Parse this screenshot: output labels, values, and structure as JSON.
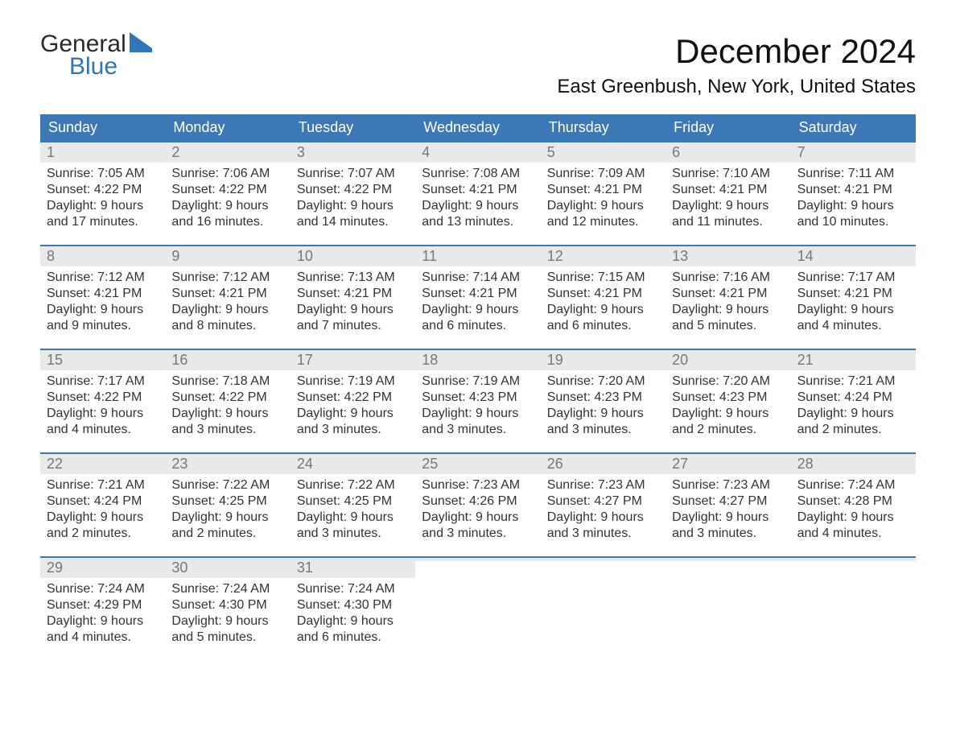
{
  "logo": {
    "line1": "General",
    "line2": "Blue"
  },
  "title": "December 2024",
  "location": "East Greenbush, New York, United States",
  "weekday_labels": [
    "Sunday",
    "Monday",
    "Tuesday",
    "Wednesday",
    "Thursday",
    "Friday",
    "Saturday"
  ],
  "colors": {
    "header_bg": "#3b78b5",
    "row_separator": "#3b78b5",
    "day_number_bg": "#e9e9e9",
    "logo_dark": "#2a2a2a",
    "logo_blue": "#2e76b6",
    "background": "#ffffff",
    "text": "#222222"
  },
  "typography": {
    "body_font": "Arial",
    "title_size_pt": 32,
    "location_size_pt": 18,
    "header_size_pt": 14,
    "cell_size_pt": 12
  },
  "calendar": {
    "columns": 7,
    "weeks": [
      [
        {
          "day": 1,
          "sunrise": "Sunrise: 7:05 AM",
          "sunset": "Sunset: 4:22 PM",
          "daylight1": "Daylight: 9 hours",
          "daylight2": "and 17 minutes."
        },
        {
          "day": 2,
          "sunrise": "Sunrise: 7:06 AM",
          "sunset": "Sunset: 4:22 PM",
          "daylight1": "Daylight: 9 hours",
          "daylight2": "and 16 minutes."
        },
        {
          "day": 3,
          "sunrise": "Sunrise: 7:07 AM",
          "sunset": "Sunset: 4:22 PM",
          "daylight1": "Daylight: 9 hours",
          "daylight2": "and 14 minutes."
        },
        {
          "day": 4,
          "sunrise": "Sunrise: 7:08 AM",
          "sunset": "Sunset: 4:21 PM",
          "daylight1": "Daylight: 9 hours",
          "daylight2": "and 13 minutes."
        },
        {
          "day": 5,
          "sunrise": "Sunrise: 7:09 AM",
          "sunset": "Sunset: 4:21 PM",
          "daylight1": "Daylight: 9 hours",
          "daylight2": "and 12 minutes."
        },
        {
          "day": 6,
          "sunrise": "Sunrise: 7:10 AM",
          "sunset": "Sunset: 4:21 PM",
          "daylight1": "Daylight: 9 hours",
          "daylight2": "and 11 minutes."
        },
        {
          "day": 7,
          "sunrise": "Sunrise: 7:11 AM",
          "sunset": "Sunset: 4:21 PM",
          "daylight1": "Daylight: 9 hours",
          "daylight2": "and 10 minutes."
        }
      ],
      [
        {
          "day": 8,
          "sunrise": "Sunrise: 7:12 AM",
          "sunset": "Sunset: 4:21 PM",
          "daylight1": "Daylight: 9 hours",
          "daylight2": "and 9 minutes."
        },
        {
          "day": 9,
          "sunrise": "Sunrise: 7:12 AM",
          "sunset": "Sunset: 4:21 PM",
          "daylight1": "Daylight: 9 hours",
          "daylight2": "and 8 minutes."
        },
        {
          "day": 10,
          "sunrise": "Sunrise: 7:13 AM",
          "sunset": "Sunset: 4:21 PM",
          "daylight1": "Daylight: 9 hours",
          "daylight2": "and 7 minutes."
        },
        {
          "day": 11,
          "sunrise": "Sunrise: 7:14 AM",
          "sunset": "Sunset: 4:21 PM",
          "daylight1": "Daylight: 9 hours",
          "daylight2": "and 6 minutes."
        },
        {
          "day": 12,
          "sunrise": "Sunrise: 7:15 AM",
          "sunset": "Sunset: 4:21 PM",
          "daylight1": "Daylight: 9 hours",
          "daylight2": "and 6 minutes."
        },
        {
          "day": 13,
          "sunrise": "Sunrise: 7:16 AM",
          "sunset": "Sunset: 4:21 PM",
          "daylight1": "Daylight: 9 hours",
          "daylight2": "and 5 minutes."
        },
        {
          "day": 14,
          "sunrise": "Sunrise: 7:17 AM",
          "sunset": "Sunset: 4:21 PM",
          "daylight1": "Daylight: 9 hours",
          "daylight2": "and 4 minutes."
        }
      ],
      [
        {
          "day": 15,
          "sunrise": "Sunrise: 7:17 AM",
          "sunset": "Sunset: 4:22 PM",
          "daylight1": "Daylight: 9 hours",
          "daylight2": "and 4 minutes."
        },
        {
          "day": 16,
          "sunrise": "Sunrise: 7:18 AM",
          "sunset": "Sunset: 4:22 PM",
          "daylight1": "Daylight: 9 hours",
          "daylight2": "and 3 minutes."
        },
        {
          "day": 17,
          "sunrise": "Sunrise: 7:19 AM",
          "sunset": "Sunset: 4:22 PM",
          "daylight1": "Daylight: 9 hours",
          "daylight2": "and 3 minutes."
        },
        {
          "day": 18,
          "sunrise": "Sunrise: 7:19 AM",
          "sunset": "Sunset: 4:23 PM",
          "daylight1": "Daylight: 9 hours",
          "daylight2": "and 3 minutes."
        },
        {
          "day": 19,
          "sunrise": "Sunrise: 7:20 AM",
          "sunset": "Sunset: 4:23 PM",
          "daylight1": "Daylight: 9 hours",
          "daylight2": "and 3 minutes."
        },
        {
          "day": 20,
          "sunrise": "Sunrise: 7:20 AM",
          "sunset": "Sunset: 4:23 PM",
          "daylight1": "Daylight: 9 hours",
          "daylight2": "and 2 minutes."
        },
        {
          "day": 21,
          "sunrise": "Sunrise: 7:21 AM",
          "sunset": "Sunset: 4:24 PM",
          "daylight1": "Daylight: 9 hours",
          "daylight2": "and 2 minutes."
        }
      ],
      [
        {
          "day": 22,
          "sunrise": "Sunrise: 7:21 AM",
          "sunset": "Sunset: 4:24 PM",
          "daylight1": "Daylight: 9 hours",
          "daylight2": "and 2 minutes."
        },
        {
          "day": 23,
          "sunrise": "Sunrise: 7:22 AM",
          "sunset": "Sunset: 4:25 PM",
          "daylight1": "Daylight: 9 hours",
          "daylight2": "and 2 minutes."
        },
        {
          "day": 24,
          "sunrise": "Sunrise: 7:22 AM",
          "sunset": "Sunset: 4:25 PM",
          "daylight1": "Daylight: 9 hours",
          "daylight2": "and 3 minutes."
        },
        {
          "day": 25,
          "sunrise": "Sunrise: 7:23 AM",
          "sunset": "Sunset: 4:26 PM",
          "daylight1": "Daylight: 9 hours",
          "daylight2": "and 3 minutes."
        },
        {
          "day": 26,
          "sunrise": "Sunrise: 7:23 AM",
          "sunset": "Sunset: 4:27 PM",
          "daylight1": "Daylight: 9 hours",
          "daylight2": "and 3 minutes."
        },
        {
          "day": 27,
          "sunrise": "Sunrise: 7:23 AM",
          "sunset": "Sunset: 4:27 PM",
          "daylight1": "Daylight: 9 hours",
          "daylight2": "and 3 minutes."
        },
        {
          "day": 28,
          "sunrise": "Sunrise: 7:24 AM",
          "sunset": "Sunset: 4:28 PM",
          "daylight1": "Daylight: 9 hours",
          "daylight2": "and 4 minutes."
        }
      ],
      [
        {
          "day": 29,
          "sunrise": "Sunrise: 7:24 AM",
          "sunset": "Sunset: 4:29 PM",
          "daylight1": "Daylight: 9 hours",
          "daylight2": "and 4 minutes."
        },
        {
          "day": 30,
          "sunrise": "Sunrise: 7:24 AM",
          "sunset": "Sunset: 4:30 PM",
          "daylight1": "Daylight: 9 hours",
          "daylight2": "and 5 minutes."
        },
        {
          "day": 31,
          "sunrise": "Sunrise: 7:24 AM",
          "sunset": "Sunset: 4:30 PM",
          "daylight1": "Daylight: 9 hours",
          "daylight2": "and 6 minutes."
        },
        {
          "empty": true
        },
        {
          "empty": true
        },
        {
          "empty": true
        },
        {
          "empty": true
        }
      ]
    ]
  }
}
